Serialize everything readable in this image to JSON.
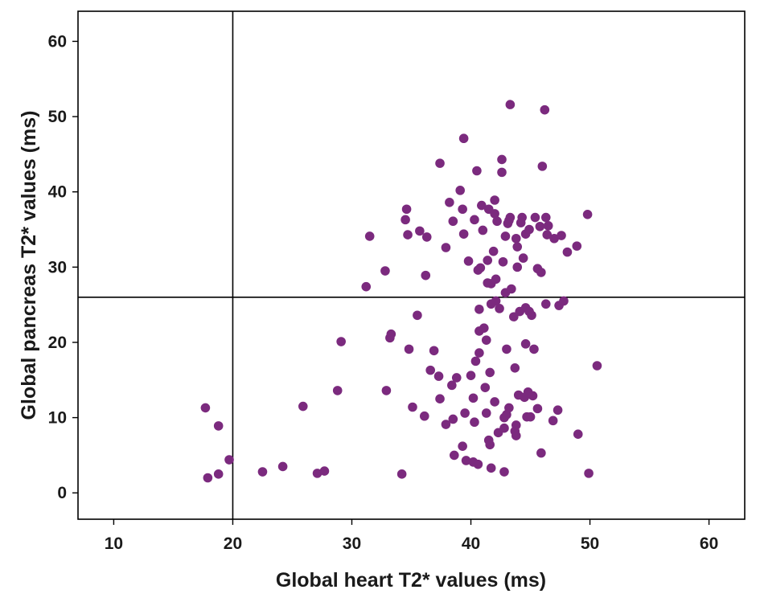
{
  "chart_data": {
    "type": "scatter",
    "title": "",
    "xlabel": "Global heart T2* values (ms)",
    "ylabel": "Global pancreas T2* values (ms)",
    "xlim": [
      7,
      63
    ],
    "ylim": [
      -3.5,
      64
    ],
    "xticks": [
      10,
      20,
      30,
      40,
      50,
      60
    ],
    "yticks": [
      0,
      10,
      20,
      30,
      40,
      50,
      60
    ],
    "xtick_labels": [
      "10",
      "20",
      "30",
      "40",
      "50",
      "60"
    ],
    "ytick_labels": [
      "0",
      "10",
      "20",
      "30",
      "40",
      "50",
      "60"
    ],
    "grid": false,
    "reference_lines": {
      "vertical_x": 20,
      "horizontal_y": 26
    },
    "marker_color": "#7b2a7e",
    "line_color": "#000000",
    "points": [
      [
        17.7,
        11.3
      ],
      [
        18.8,
        8.9
      ],
      [
        17.9,
        2.0
      ],
      [
        18.8,
        2.5
      ],
      [
        19.7,
        4.4
      ],
      [
        22.5,
        2.8
      ],
      [
        24.2,
        3.5
      ],
      [
        25.9,
        11.5
      ],
      [
        27.1,
        2.6
      ],
      [
        27.7,
        2.9
      ],
      [
        28.8,
        13.6
      ],
      [
        29.1,
        20.1
      ],
      [
        31.2,
        27.4
      ],
      [
        31.5,
        34.1
      ],
      [
        32.8,
        29.5
      ],
      [
        32.9,
        13.6
      ],
      [
        33.2,
        20.6
      ],
      [
        33.3,
        21.1
      ],
      [
        34.5,
        36.3
      ],
      [
        34.6,
        37.7
      ],
      [
        34.7,
        34.3
      ],
      [
        34.8,
        19.1
      ],
      [
        35.1,
        11.4
      ],
      [
        35.5,
        23.6
      ],
      [
        35.7,
        34.8
      ],
      [
        36.1,
        10.2
      ],
      [
        36.2,
        28.9
      ],
      [
        36.3,
        34.0
      ],
      [
        36.6,
        16.3
      ],
      [
        36.9,
        18.9
      ],
      [
        37.3,
        15.5
      ],
      [
        37.4,
        12.5
      ],
      [
        37.4,
        43.8
      ],
      [
        37.9,
        32.6
      ],
      [
        37.9,
        9.1
      ],
      [
        38.2,
        38.6
      ],
      [
        38.4,
        14.3
      ],
      [
        38.5,
        9.8
      ],
      [
        38.5,
        36.1
      ],
      [
        38.6,
        5.0
      ],
      [
        38.8,
        15.3
      ],
      [
        39.1,
        40.2
      ],
      [
        39.3,
        37.7
      ],
      [
        39.3,
        6.2
      ],
      [
        39.4,
        34.4
      ],
      [
        39.4,
        47.1
      ],
      [
        39.5,
        10.6
      ],
      [
        39.6,
        4.3
      ],
      [
        39.8,
        30.8
      ],
      [
        40.0,
        15.6
      ],
      [
        40.2,
        12.6
      ],
      [
        40.2,
        4.1
      ],
      [
        40.3,
        36.3
      ],
      [
        40.3,
        9.4
      ],
      [
        40.4,
        17.5
      ],
      [
        40.5,
        42.8
      ],
      [
        40.6,
        29.6
      ],
      [
        40.6,
        3.8
      ],
      [
        40.7,
        18.6
      ],
      [
        40.7,
        21.5
      ],
      [
        40.7,
        24.4
      ],
      [
        40.8,
        29.9
      ],
      [
        40.9,
        38.2
      ],
      [
        41.0,
        34.9
      ],
      [
        41.1,
        21.9
      ],
      [
        41.2,
        14.0
      ],
      [
        41.3,
        20.3
      ],
      [
        41.3,
        10.6
      ],
      [
        41.4,
        27.9
      ],
      [
        41.4,
        30.9
      ],
      [
        41.5,
        37.7
      ],
      [
        41.5,
        7.0
      ],
      [
        41.6,
        6.4
      ],
      [
        41.6,
        16.0
      ],
      [
        41.7,
        25.1
      ],
      [
        41.7,
        3.3
      ],
      [
        41.7,
        27.8
      ],
      [
        41.9,
        32.1
      ],
      [
        42.0,
        37.1
      ],
      [
        42.0,
        38.9
      ],
      [
        42.0,
        12.1
      ],
      [
        42.1,
        28.4
      ],
      [
        42.1,
        25.5
      ],
      [
        42.2,
        36.1
      ],
      [
        42.3,
        8.0
      ],
      [
        42.4,
        24.5
      ],
      [
        42.6,
        42.6
      ],
      [
        42.6,
        44.3
      ],
      [
        42.7,
        30.7
      ],
      [
        42.8,
        8.6
      ],
      [
        42.8,
        2.8
      ],
      [
        42.8,
        10.0
      ],
      [
        42.9,
        26.6
      ],
      [
        42.9,
        34.1
      ],
      [
        43.0,
        19.1
      ],
      [
        43.0,
        10.4
      ],
      [
        43.1,
        35.8
      ],
      [
        43.2,
        11.3
      ],
      [
        43.2,
        36.2
      ],
      [
        43.3,
        36.6
      ],
      [
        43.3,
        51.6
      ],
      [
        43.4,
        27.1
      ],
      [
        43.6,
        23.4
      ],
      [
        43.7,
        16.6
      ],
      [
        43.7,
        8.2
      ],
      [
        43.8,
        7.6
      ],
      [
        43.8,
        33.8
      ],
      [
        43.8,
        9.0
      ],
      [
        43.9,
        32.7
      ],
      [
        43.9,
        30.0
      ],
      [
        44.0,
        13.0
      ],
      [
        44.1,
        24.1
      ],
      [
        44.2,
        35.9
      ],
      [
        44.3,
        36.6
      ],
      [
        44.4,
        31.2
      ],
      [
        44.5,
        12.7
      ],
      [
        44.6,
        24.6
      ],
      [
        44.6,
        19.8
      ],
      [
        44.6,
        34.4
      ],
      [
        44.7,
        10.1
      ],
      [
        44.8,
        13.4
      ],
      [
        44.9,
        35.0
      ],
      [
        44.9,
        24.1
      ],
      [
        45.0,
        10.1
      ],
      [
        45.1,
        23.6
      ],
      [
        45.2,
        12.9
      ],
      [
        45.3,
        19.1
      ],
      [
        45.4,
        36.6
      ],
      [
        45.6,
        11.2
      ],
      [
        45.6,
        29.8
      ],
      [
        45.8,
        35.4
      ],
      [
        45.9,
        29.3
      ],
      [
        45.9,
        5.3
      ],
      [
        46.0,
        43.4
      ],
      [
        46.2,
        50.9
      ],
      [
        46.3,
        36.6
      ],
      [
        46.3,
        25.1
      ],
      [
        46.4,
        34.3
      ],
      [
        46.5,
        35.5
      ],
      [
        46.9,
        9.6
      ],
      [
        47.0,
        33.8
      ],
      [
        47.3,
        11.0
      ],
      [
        47.4,
        24.9
      ],
      [
        47.6,
        34.2
      ],
      [
        47.8,
        25.5
      ],
      [
        48.1,
        32.0
      ],
      [
        48.9,
        32.8
      ],
      [
        49.0,
        7.8
      ],
      [
        49.8,
        37.0
      ],
      [
        49.9,
        2.6
      ],
      [
        50.6,
        16.9
      ],
      [
        34.2,
        2.5
      ]
    ]
  }
}
